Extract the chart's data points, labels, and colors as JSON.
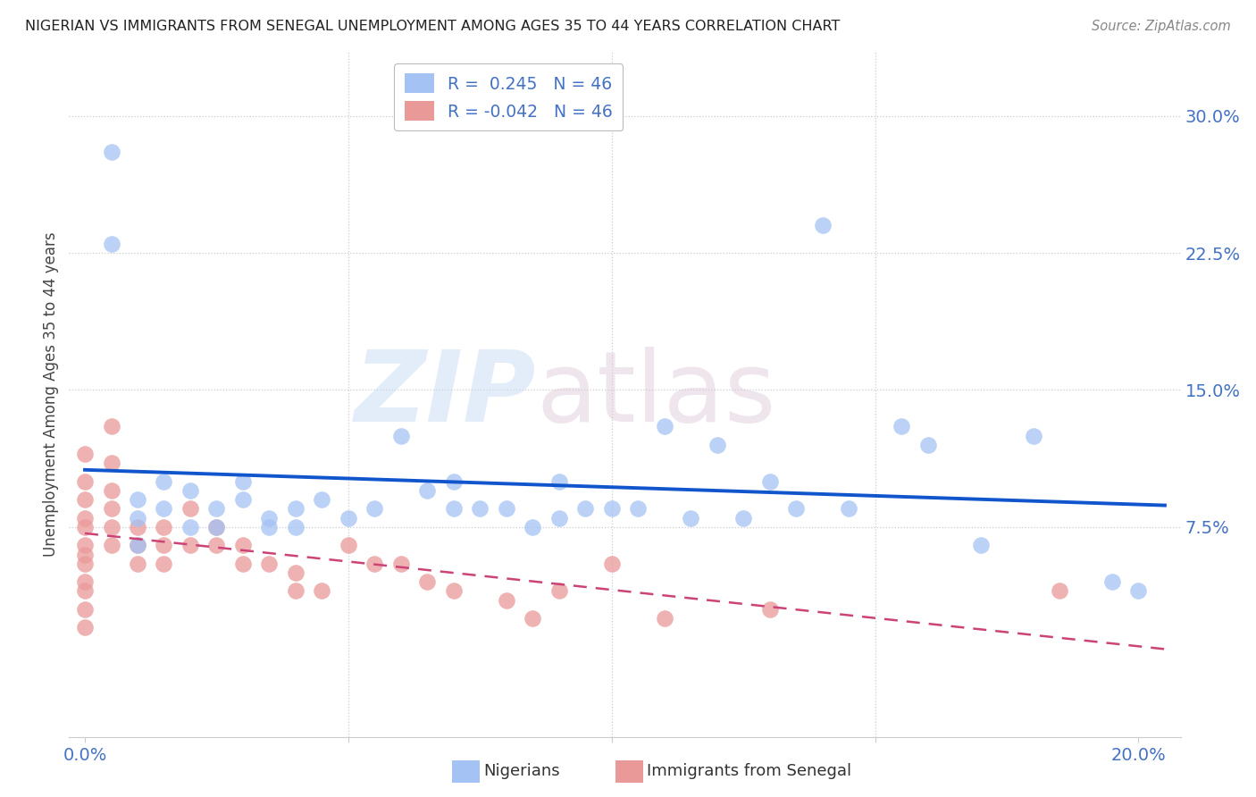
{
  "title": "NIGERIAN VS IMMIGRANTS FROM SENEGAL UNEMPLOYMENT AMONG AGES 35 TO 44 YEARS CORRELATION CHART",
  "source": "Source: ZipAtlas.com",
  "ylabel_label": "Unemployment Among Ages 35 to 44 years",
  "xlim": [
    -0.003,
    0.208
  ],
  "ylim": [
    -0.04,
    0.335
  ],
  "R_nigerian": 0.245,
  "N_nigerian": 46,
  "R_senegal": -0.042,
  "N_senegal": 46,
  "blue_color": "#a4c2f4",
  "pink_color": "#ea9999",
  "blue_line_color": "#1155cc",
  "pink_line_color": "#cc4477",
  "background_color": "#ffffff",
  "tick_color": "#4472c4",
  "title_color": "#222222",
  "source_color": "#888888",
  "grid_color": "#cccccc",
  "nigerian_x": [
    0.005,
    0.005,
    0.01,
    0.01,
    0.01,
    0.015,
    0.015,
    0.02,
    0.02,
    0.025,
    0.025,
    0.03,
    0.03,
    0.035,
    0.035,
    0.04,
    0.04,
    0.045,
    0.05,
    0.055,
    0.06,
    0.065,
    0.07,
    0.07,
    0.075,
    0.08,
    0.085,
    0.09,
    0.09,
    0.095,
    0.1,
    0.105,
    0.11,
    0.115,
    0.12,
    0.125,
    0.13,
    0.135,
    0.14,
    0.145,
    0.155,
    0.16,
    0.17,
    0.18,
    0.195,
    0.2
  ],
  "nigerian_y": [
    0.28,
    0.23,
    0.09,
    0.08,
    0.065,
    0.1,
    0.085,
    0.095,
    0.075,
    0.085,
    0.075,
    0.1,
    0.09,
    0.08,
    0.075,
    0.085,
    0.075,
    0.09,
    0.08,
    0.085,
    0.125,
    0.095,
    0.1,
    0.085,
    0.085,
    0.085,
    0.075,
    0.1,
    0.08,
    0.085,
    0.085,
    0.085,
    0.13,
    0.08,
    0.12,
    0.08,
    0.1,
    0.085,
    0.24,
    0.085,
    0.13,
    0.12,
    0.065,
    0.125,
    0.045,
    0.04
  ],
  "senegal_x": [
    0.0,
    0.0,
    0.0,
    0.0,
    0.0,
    0.0,
    0.0,
    0.0,
    0.0,
    0.0,
    0.0,
    0.0,
    0.005,
    0.005,
    0.005,
    0.005,
    0.005,
    0.005,
    0.01,
    0.01,
    0.01,
    0.015,
    0.015,
    0.015,
    0.02,
    0.02,
    0.025,
    0.025,
    0.03,
    0.03,
    0.035,
    0.04,
    0.04,
    0.045,
    0.05,
    0.055,
    0.06,
    0.065,
    0.07,
    0.08,
    0.085,
    0.09,
    0.1,
    0.11,
    0.13,
    0.185
  ],
  "senegal_y": [
    0.115,
    0.1,
    0.09,
    0.08,
    0.075,
    0.065,
    0.06,
    0.055,
    0.045,
    0.04,
    0.03,
    0.02,
    0.13,
    0.11,
    0.095,
    0.085,
    0.075,
    0.065,
    0.075,
    0.065,
    0.055,
    0.075,
    0.065,
    0.055,
    0.085,
    0.065,
    0.075,
    0.065,
    0.065,
    0.055,
    0.055,
    0.05,
    0.04,
    0.04,
    0.065,
    0.055,
    0.055,
    0.045,
    0.04,
    0.035,
    0.025,
    0.04,
    0.055,
    0.025,
    0.03,
    0.04
  ]
}
